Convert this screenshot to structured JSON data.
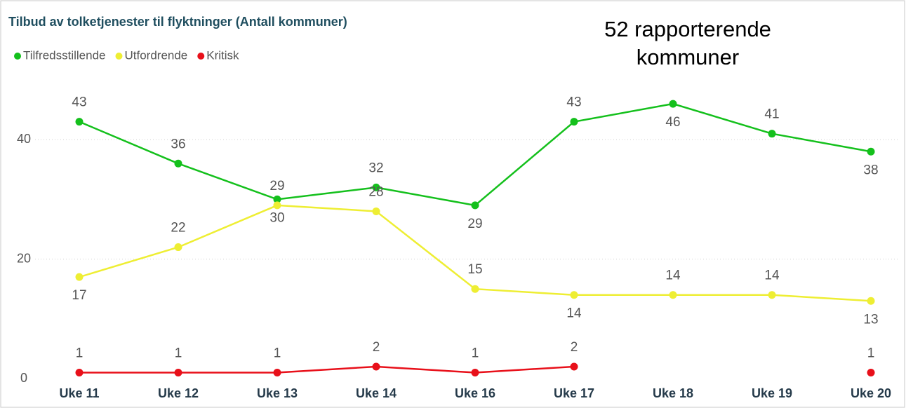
{
  "chart_data": {
    "type": "line",
    "title": "Tilbud av tolketjenester til flyktninger (Antall kommuner)",
    "annotation": "52 rapporterende kommuner",
    "categories": [
      "Uke 11",
      "Uke 12",
      "Uke 13",
      "Uke 14",
      "Uke 16",
      "Uke 17",
      "Uke 18",
      "Uke 19",
      "Uke 20"
    ],
    "series": [
      {
        "name": "Tilfredsstillende",
        "color": "#14c01c",
        "values": [
          43,
          36,
          30,
          32,
          29,
          43,
          46,
          41,
          38
        ]
      },
      {
        "name": "Utfordrende",
        "color": "#eeee33",
        "values": [
          17,
          22,
          29,
          28,
          15,
          14,
          14,
          14,
          13
        ]
      },
      {
        "name": "Kritisk",
        "color": "#e8101a",
        "values": [
          1,
          1,
          1,
          2,
          1,
          2,
          null,
          null,
          1
        ]
      }
    ],
    "ylim": [
      0,
      50
    ],
    "yticks": [
      0,
      20,
      40
    ],
    "grid": true
  }
}
